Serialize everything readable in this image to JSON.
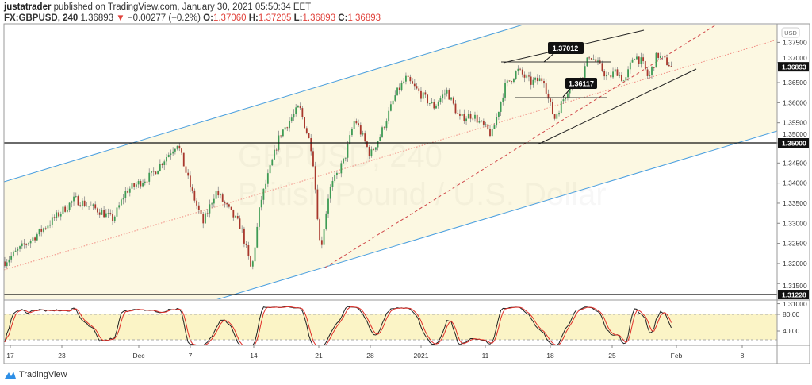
{
  "header": {
    "author": "justatrader",
    "published_text": "published on TradingView.com, January 30, 2021 05:50:34 EET",
    "symbol": "FX:GBPUSD, 240",
    "last": "1.36893",
    "change_arrow": "▼",
    "change": "−0.00277 (−0.2%)",
    "open_label": "O:",
    "open": "1.37060",
    "high_label": "H:",
    "high": "1.37205",
    "low_label": "L:",
    "low": "1.36893",
    "close_label": "C:",
    "close": "1.36893"
  },
  "watermark": {
    "line1": "GBPUSD, 240",
    "line2": "British Pound / U.S. Dollar"
  },
  "currency_badge": "USD",
  "footer": {
    "brand": "TradingView"
  },
  "colors": {
    "up": "#3e9b54",
    "down": "#a8372c",
    "wick": "#8a8a8a",
    "channel_fill": "#fcf8e2",
    "channel_line": "#4a9fe0",
    "mid_line": "#f08a80",
    "dashed_line": "#d0484a",
    "stoch_k": "#222222",
    "stoch_d": "#e0302a",
    "stoch_band": "#fbf4c6"
  },
  "chart_data": {
    "type": "candlestick",
    "symbol": "GBPUSD",
    "interval": "240",
    "ylim": [
      1.3095,
      1.378
    ],
    "y_ticks": [
      "1.37500",
      "1.37000",
      "1.36500",
      "1.36000",
      "1.35500",
      "1.35000",
      "1.34500",
      "1.34000",
      "1.33500",
      "1.33000",
      "1.32500",
      "1.32000",
      "1.31500",
      "1.31000"
    ],
    "price_markers": [
      {
        "label": "1.36893",
        "price": 1.36893,
        "kind": "last"
      },
      {
        "label": "1.35000",
        "price": 1.35,
        "kind": "horizontal-line"
      },
      {
        "label": "1.31228",
        "price": 1.31228,
        "kind": "horizontal-line"
      }
    ],
    "annotations": [
      {
        "label": "1.37012",
        "price": 1.37012
      },
      {
        "label": "1.36117",
        "price": 1.36117
      }
    ],
    "x_ticks": [
      {
        "label": "17",
        "date": "2020-11-17"
      },
      {
        "label": "23",
        "date": "2020-11-23"
      },
      {
        "label": "Dec",
        "date": "2020-12-01"
      },
      {
        "label": "7",
        "date": "2020-12-07"
      },
      {
        "label": "14",
        "date": "2020-12-14"
      },
      {
        "label": "21",
        "date": "2020-12-21"
      },
      {
        "label": "28",
        "date": "2020-12-28"
      },
      {
        "label": "2021",
        "date": "2021-01-04"
      },
      {
        "label": "11",
        "date": "2021-01-11"
      },
      {
        "label": "18",
        "date": "2021-01-18"
      },
      {
        "label": "25",
        "date": "2021-01-25"
      },
      {
        "label": "Feb",
        "date": "2021-02-01"
      },
      {
        "label": "8",
        "date": "2021-02-08"
      }
    ],
    "price_path": [
      {
        "date": "2020-11-16T00:00",
        "close": 1.319
      },
      {
        "date": "2020-11-19T00:00",
        "close": 1.327
      },
      {
        "date": "2020-11-24T00:00",
        "close": 1.336
      },
      {
        "date": "2020-11-26T00:00",
        "close": 1.333
      },
      {
        "date": "2020-11-27T00:00",
        "close": 1.331
      },
      {
        "date": "2020-11-30T00:00",
        "close": 1.338
      },
      {
        "date": "2020-12-02T00:00",
        "close": 1.342
      },
      {
        "date": "2020-12-04T00:00",
        "close": 1.35
      },
      {
        "date": "2020-12-07T00:00",
        "close": 1.339
      },
      {
        "date": "2020-12-08T00:00",
        "close": 1.33
      },
      {
        "date": "2020-12-09T00:00",
        "close": 1.338
      },
      {
        "date": "2020-12-11T00:00",
        "close": 1.329
      },
      {
        "date": "2020-12-11T20:00",
        "close": 1.318
      },
      {
        "date": "2020-12-14T12:00",
        "close": 1.335
      },
      {
        "date": "2020-12-16T00:00",
        "close": 1.352
      },
      {
        "date": "2020-12-17T12:00",
        "close": 1.359
      },
      {
        "date": "2020-12-18T12:00",
        "close": 1.348
      },
      {
        "date": "2020-12-21T04:00",
        "close": 1.323
      },
      {
        "date": "2020-12-22T00:00",
        "close": 1.338
      },
      {
        "date": "2020-12-23T12:00",
        "close": 1.346
      },
      {
        "date": "2020-12-24T12:00",
        "close": 1.356
      },
      {
        "date": "2020-12-28T00:00",
        "close": 1.347
      },
      {
        "date": "2020-12-29T00:00",
        "close": 1.352
      },
      {
        "date": "2020-12-30T12:00",
        "close": 1.362
      },
      {
        "date": "2020-12-31T12:00",
        "close": 1.366
      },
      {
        "date": "2021-01-04T00:00",
        "close": 1.362
      },
      {
        "date": "2021-01-05T00:00",
        "close": 1.359
      },
      {
        "date": "2021-01-06T00:00",
        "close": 1.363
      },
      {
        "date": "2021-01-07T00:00",
        "close": 1.356
      },
      {
        "date": "2021-01-08T00:00",
        "close": 1.357
      },
      {
        "date": "2021-01-11T12:00",
        "close": 1.352
      },
      {
        "date": "2021-01-12T12:00",
        "close": 1.364
      },
      {
        "date": "2021-01-13T12:00",
        "close": 1.368
      },
      {
        "date": "2021-01-14T12:00",
        "close": 1.365
      },
      {
        "date": "2021-01-15T12:00",
        "close": 1.366
      },
      {
        "date": "2021-01-15T20:00",
        "close": 1.361
      },
      {
        "date": "2021-01-18T08:00",
        "close": 1.356
      },
      {
        "date": "2021-01-19T12:00",
        "close": 1.364
      },
      {
        "date": "2021-01-20T12:00",
        "close": 1.366
      },
      {
        "date": "2021-01-21T04:00",
        "close": 1.372
      },
      {
        "date": "2021-01-22T00:00",
        "close": 1.369
      },
      {
        "date": "2021-01-22T16:00",
        "close": 1.366
      },
      {
        "date": "2021-01-25T08:00",
        "close": 1.368
      },
      {
        "date": "2021-01-26T00:00",
        "close": 1.365
      },
      {
        "date": "2021-01-26T16:00",
        "close": 1.372
      },
      {
        "date": "2021-01-27T08:00",
        "close": 1.37
      },
      {
        "date": "2021-01-27T20:00",
        "close": 1.366
      },
      {
        "date": "2021-01-28T12:00",
        "close": 1.372
      },
      {
        "date": "2021-01-29T16:00",
        "close": 1.36893
      }
    ],
    "oscillator": {
      "type": "stochastic",
      "levels": [
        80,
        20
      ],
      "y_ticks": [
        "80.00",
        "40.00"
      ]
    }
  }
}
